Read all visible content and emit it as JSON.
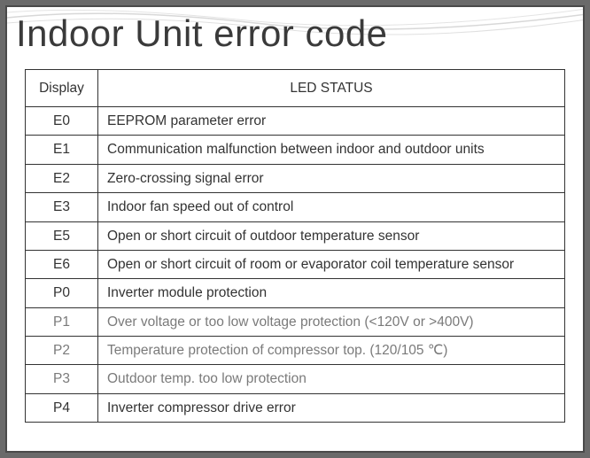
{
  "title": "Indoor Unit error code",
  "headers": {
    "display": "Display",
    "status": "LED STATUS"
  },
  "rows": [
    {
      "display": "E0",
      "status": "EEPROM parameter error",
      "dim": false
    },
    {
      "display": "E1",
      "status": "Communication malfunction between indoor and outdoor units",
      "dim": false
    },
    {
      "display": "E2",
      "status": "Zero-crossing signal error",
      "dim": false
    },
    {
      "display": "E3",
      "status": "Indoor fan speed out of control",
      "dim": false
    },
    {
      "display": "E5",
      "status": "Open or short circuit of outdoor temperature sensor",
      "dim": false
    },
    {
      "display": "E6",
      "status": "Open or short circuit of room or evaporator coil temperature sensor",
      "dim": false
    },
    {
      "display": "P0",
      "status": "Inverter module protection",
      "dim": false
    },
    {
      "display": "P1",
      "status": "Over voltage or too low voltage protection (<120V or >400V)",
      "dim": true
    },
    {
      "display": "P2",
      "status": "Temperature protection of compressor top. (120/105 ℃)",
      "dim": true
    },
    {
      "display": "P3",
      "status": "Outdoor temp. too low protection",
      "dim": true
    },
    {
      "display": "P4",
      "status": "Inverter compressor drive error",
      "dim": false
    }
  ],
  "styling": {
    "page_bg": "#6a6a6a",
    "frame_bg": "#ffffff",
    "frame_border": "#4a4a4a",
    "title_color": "#3a3a3a",
    "title_fontsize": 42,
    "cell_border": "#333333",
    "text_color": "#333333",
    "dim_text_color": "#7a7a7a",
    "cell_fontsize": 15.5,
    "col_display_width": 82,
    "wave_color": "#d8d8d8"
  }
}
